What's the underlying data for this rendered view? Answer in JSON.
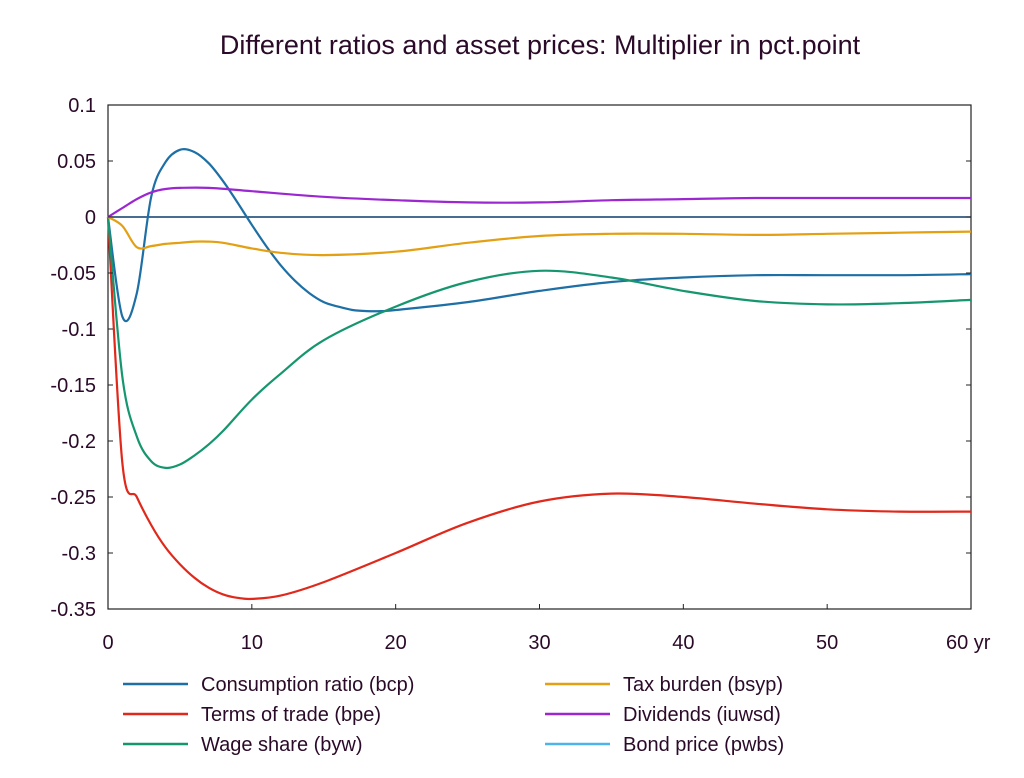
{
  "chart_data": {
    "type": "line",
    "title": "Different ratios and asset prices: Multiplier in pct.point",
    "xlim": [
      0,
      60
    ],
    "ylim": [
      -0.35,
      0.1
    ],
    "x_ticks": [
      "0",
      "10",
      "20",
      "30",
      "40",
      "50",
      "60 yr"
    ],
    "y_ticks": [
      "0.1",
      "0.05",
      "0",
      "-0.05",
      "-0.1",
      "-0.15",
      "-0.2",
      "-0.25",
      "-0.3",
      "-0.35"
    ],
    "zero_line": true,
    "grid": false,
    "legend_position": "bottom",
    "series": [
      {
        "name": "Consumption ratio (bcp)",
        "color": "#1d6fa5",
        "points": [
          [
            0,
            0
          ],
          [
            1,
            -0.089
          ],
          [
            2,
            -0.068
          ],
          [
            3,
            0.018
          ],
          [
            4,
            0.049
          ],
          [
            5,
            0.06
          ],
          [
            6,
            0.058
          ],
          [
            7,
            0.048
          ],
          [
            8,
            0.032
          ],
          [
            9,
            0.013
          ],
          [
            10,
            -0.007
          ],
          [
            11,
            -0.026
          ],
          [
            12,
            -0.043
          ],
          [
            13,
            -0.057
          ],
          [
            14,
            -0.068
          ],
          [
            15,
            -0.076
          ],
          [
            16,
            -0.08
          ],
          [
            17,
            -0.083
          ],
          [
            18,
            -0.084
          ],
          [
            19,
            -0.084
          ],
          [
            20,
            -0.083
          ],
          [
            25,
            -0.076
          ],
          [
            30,
            -0.066
          ],
          [
            35,
            -0.058
          ],
          [
            40,
            -0.054
          ],
          [
            45,
            -0.052
          ],
          [
            50,
            -0.052
          ],
          [
            55,
            -0.052
          ],
          [
            60,
            -0.051
          ]
        ]
      },
      {
        "name": "Terms of trade (bpe)",
        "color": "#e0281b",
        "points": [
          [
            0,
            0
          ],
          [
            1,
            -0.22
          ],
          [
            2,
            -0.25
          ],
          [
            3,
            -0.275
          ],
          [
            4,
            -0.295
          ],
          [
            5,
            -0.31
          ],
          [
            6,
            -0.322
          ],
          [
            7,
            -0.331
          ],
          [
            8,
            -0.337
          ],
          [
            9,
            -0.34
          ],
          [
            10,
            -0.341
          ],
          [
            12,
            -0.338
          ],
          [
            15,
            -0.326
          ],
          [
            20,
            -0.3
          ],
          [
            25,
            -0.273
          ],
          [
            30,
            -0.254
          ],
          [
            35,
            -0.247
          ],
          [
            40,
            -0.25
          ],
          [
            45,
            -0.256
          ],
          [
            50,
            -0.261
          ],
          [
            55,
            -0.263
          ],
          [
            60,
            -0.263
          ]
        ]
      },
      {
        "name": "Wage share (byw)",
        "color": "#16966e",
        "points": [
          [
            0,
            0
          ],
          [
            1,
            -0.143
          ],
          [
            2,
            -0.196
          ],
          [
            3,
            -0.218
          ],
          [
            4,
            -0.224
          ],
          [
            5,
            -0.221
          ],
          [
            6,
            -0.213
          ],
          [
            7,
            -0.203
          ],
          [
            8,
            -0.191
          ],
          [
            10,
            -0.163
          ],
          [
            12,
            -0.14
          ],
          [
            15,
            -0.11
          ],
          [
            20,
            -0.08
          ],
          [
            25,
            -0.058
          ],
          [
            30,
            -0.048
          ],
          [
            35,
            -0.054
          ],
          [
            40,
            -0.066
          ],
          [
            45,
            -0.075
          ],
          [
            50,
            -0.078
          ],
          [
            55,
            -0.077
          ],
          [
            60,
            -0.074
          ]
        ]
      },
      {
        "name": "Tax burden (bsyp)",
        "color": "#e3a013",
        "points": [
          [
            0,
            0
          ],
          [
            1,
            -0.008
          ],
          [
            2,
            -0.027
          ],
          [
            3,
            -0.026
          ],
          [
            4,
            -0.024
          ],
          [
            5,
            -0.023
          ],
          [
            6,
            -0.022
          ],
          [
            7,
            -0.022
          ],
          [
            8,
            -0.023
          ],
          [
            10,
            -0.028
          ],
          [
            12,
            -0.032
          ],
          [
            15,
            -0.034
          ],
          [
            20,
            -0.031
          ],
          [
            25,
            -0.023
          ],
          [
            30,
            -0.017
          ],
          [
            35,
            -0.015
          ],
          [
            40,
            -0.015
          ],
          [
            45,
            -0.016
          ],
          [
            50,
            -0.015
          ],
          [
            55,
            -0.014
          ],
          [
            60,
            -0.013
          ]
        ]
      },
      {
        "name": "Dividends (iuwsd)",
        "color": "#9b27d0",
        "points": [
          [
            0,
            0
          ],
          [
            1,
            0.008
          ],
          [
            2,
            0.016
          ],
          [
            3,
            0.022
          ],
          [
            4,
            0.025
          ],
          [
            5,
            0.026
          ],
          [
            7,
            0.026
          ],
          [
            10,
            0.023
          ],
          [
            15,
            0.018
          ],
          [
            20,
            0.015
          ],
          [
            25,
            0.013
          ],
          [
            30,
            0.013
          ],
          [
            35,
            0.015
          ],
          [
            40,
            0.016
          ],
          [
            45,
            0.017
          ],
          [
            50,
            0.017
          ],
          [
            55,
            0.017
          ],
          [
            60,
            0.017
          ]
        ]
      },
      {
        "name": "Bond price (pwbs)",
        "color": "#4eb3e8",
        "points": []
      }
    ]
  }
}
